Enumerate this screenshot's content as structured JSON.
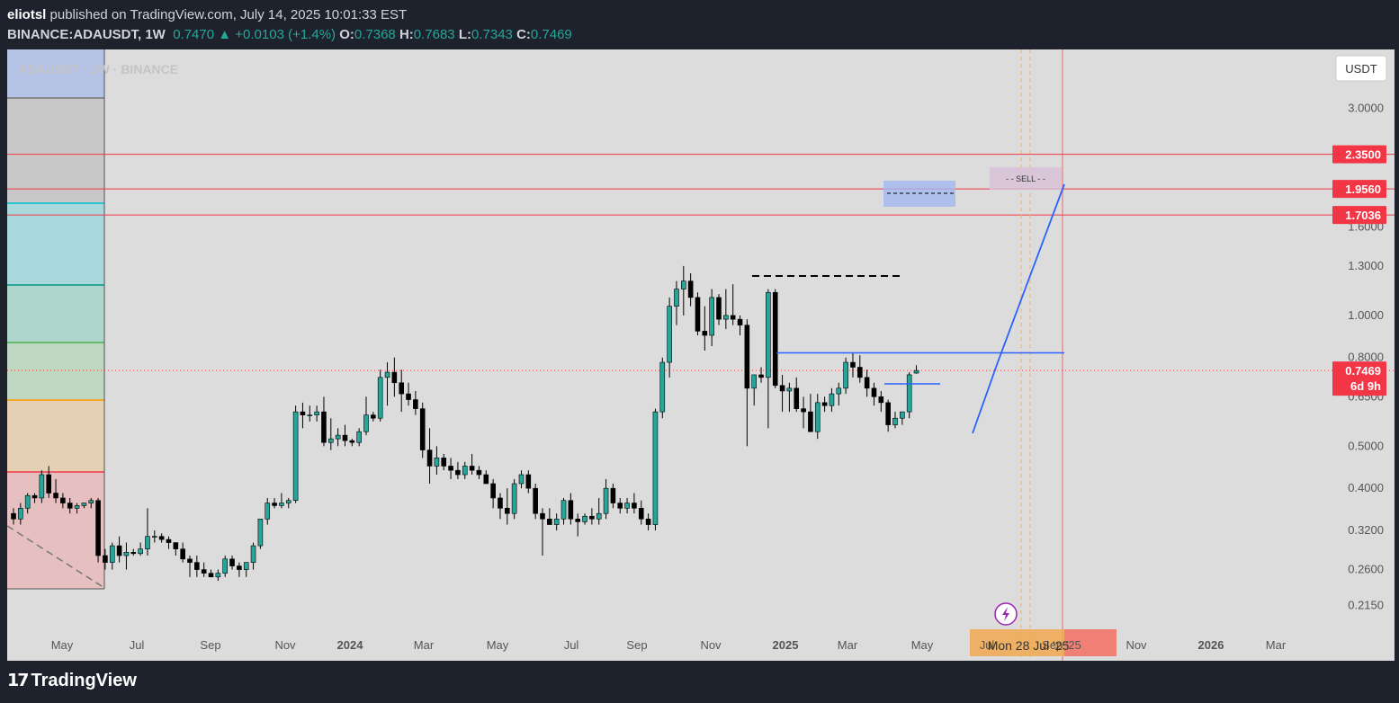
{
  "header": {
    "publisher": "eliotsl",
    "published_text": "published on TradingView.com, July 14, 2025 10:01:33 EST",
    "symbol": "BINANCE:ADAUSDT, 1W",
    "last": "0.7470",
    "change": "+0.0103 (+1.4%)",
    "o_label": "O:",
    "o": "0.7368",
    "h_label": "H:",
    "h": "0.7683",
    "l_label": "L:",
    "l": "0.7343",
    "c_label": "C:",
    "c": "0.7469"
  },
  "watermark": "ADAUSDT · 1W · BINANCE",
  "currency_button": "USDT",
  "footer": {
    "brand": "TradingView"
  },
  "colors": {
    "up": "#26a69a",
    "down": "#000000",
    "level_red": "#f23645",
    "trend_blue": "#2962ff"
  },
  "chart_data": {
    "type": "candlestick",
    "y_scale": "log",
    "ylim": [
      0.185,
      4.0
    ],
    "y_ticks": [
      "3.0000",
      "1.6000",
      "1.3000",
      "1.0000",
      "0.8000",
      "0.6500",
      "0.5000",
      "0.4000",
      "0.3200",
      "0.2600",
      "0.2150"
    ],
    "x_ticks": [
      "May",
      "Jul",
      "Sep",
      "Nov",
      "2024",
      "Mar",
      "May",
      "Jul",
      "Sep",
      "Nov",
      "2025",
      "Mar",
      "May",
      "Jul",
      "Sep '25",
      "Nov",
      "2026",
      "Mar"
    ],
    "price_labels": [
      {
        "text": "2.3500",
        "value": 2.35
      },
      {
        "text": "1.9560",
        "value": 1.956
      },
      {
        "text": "1.7036",
        "value": 1.7036
      },
      {
        "text": "0.7469",
        "value": 0.7469,
        "sub": "6d 9h"
      }
    ],
    "horizontal_levels": [
      2.35,
      1.956,
      1.7036
    ],
    "current_price": 0.7469,
    "annotations": {
      "sell": "SELL",
      "date_marker": "Mon 28 Jul '25"
    },
    "candles": [
      [
        0.35,
        0.36,
        0.33,
        0.34
      ],
      [
        0.34,
        0.37,
        0.33,
        0.36
      ],
      [
        0.36,
        0.39,
        0.35,
        0.385
      ],
      [
        0.385,
        0.39,
        0.37,
        0.38
      ],
      [
        0.38,
        0.44,
        0.37,
        0.43
      ],
      [
        0.43,
        0.45,
        0.38,
        0.39
      ],
      [
        0.39,
        0.42,
        0.37,
        0.38
      ],
      [
        0.38,
        0.39,
        0.36,
        0.37
      ],
      [
        0.37,
        0.38,
        0.35,
        0.36
      ],
      [
        0.36,
        0.37,
        0.35,
        0.365
      ],
      [
        0.365,
        0.37,
        0.36,
        0.37
      ],
      [
        0.37,
        0.38,
        0.36,
        0.375
      ],
      [
        0.375,
        0.38,
        0.27,
        0.28
      ],
      [
        0.28,
        0.29,
        0.26,
        0.27
      ],
      [
        0.27,
        0.3,
        0.26,
        0.295
      ],
      [
        0.295,
        0.31,
        0.27,
        0.28
      ],
      [
        0.28,
        0.3,
        0.26,
        0.285
      ],
      [
        0.285,
        0.29,
        0.28,
        0.283
      ],
      [
        0.283,
        0.3,
        0.28,
        0.29
      ],
      [
        0.29,
        0.36,
        0.28,
        0.31
      ],
      [
        0.31,
        0.32,
        0.3,
        0.31
      ],
      [
        0.31,
        0.315,
        0.3,
        0.305
      ],
      [
        0.305,
        0.31,
        0.29,
        0.3
      ],
      [
        0.3,
        0.3,
        0.28,
        0.29
      ],
      [
        0.29,
        0.3,
        0.27,
        0.275
      ],
      [
        0.275,
        0.28,
        0.25,
        0.27
      ],
      [
        0.27,
        0.28,
        0.25,
        0.26
      ],
      [
        0.26,
        0.27,
        0.25,
        0.255
      ],
      [
        0.255,
        0.26,
        0.25,
        0.25
      ],
      [
        0.25,
        0.26,
        0.245,
        0.255
      ],
      [
        0.255,
        0.28,
        0.25,
        0.275
      ],
      [
        0.275,
        0.28,
        0.26,
        0.265
      ],
      [
        0.265,
        0.27,
        0.25,
        0.26
      ],
      [
        0.26,
        0.27,
        0.25,
        0.27
      ],
      [
        0.27,
        0.3,
        0.26,
        0.295
      ],
      [
        0.295,
        0.34,
        0.29,
        0.34
      ],
      [
        0.34,
        0.38,
        0.33,
        0.37
      ],
      [
        0.37,
        0.38,
        0.36,
        0.365
      ],
      [
        0.365,
        0.39,
        0.36,
        0.37
      ],
      [
        0.37,
        0.38,
        0.36,
        0.375
      ],
      [
        0.375,
        0.62,
        0.37,
        0.6
      ],
      [
        0.6,
        0.63,
        0.55,
        0.59
      ],
      [
        0.59,
        0.62,
        0.57,
        0.59
      ],
      [
        0.59,
        0.62,
        0.57,
        0.6
      ],
      [
        0.6,
        0.65,
        0.5,
        0.51
      ],
      [
        0.51,
        0.58,
        0.49,
        0.52
      ],
      [
        0.52,
        0.55,
        0.5,
        0.53
      ],
      [
        0.53,
        0.56,
        0.5,
        0.515
      ],
      [
        0.515,
        0.52,
        0.5,
        0.51
      ],
      [
        0.51,
        0.55,
        0.5,
        0.54
      ],
      [
        0.54,
        0.65,
        0.53,
        0.59
      ],
      [
        0.59,
        0.6,
        0.57,
        0.58
      ],
      [
        0.58,
        0.75,
        0.57,
        0.72
      ],
      [
        0.72,
        0.78,
        0.62,
        0.74
      ],
      [
        0.74,
        0.8,
        0.65,
        0.7
      ],
      [
        0.7,
        0.75,
        0.6,
        0.66
      ],
      [
        0.66,
        0.7,
        0.62,
        0.64
      ],
      [
        0.64,
        0.67,
        0.59,
        0.61
      ],
      [
        0.61,
        0.63,
        0.47,
        0.49
      ],
      [
        0.49,
        0.55,
        0.41,
        0.45
      ],
      [
        0.45,
        0.5,
        0.43,
        0.47
      ],
      [
        0.47,
        0.48,
        0.44,
        0.45
      ],
      [
        0.45,
        0.47,
        0.42,
        0.44
      ],
      [
        0.44,
        0.46,
        0.42,
        0.43
      ],
      [
        0.43,
        0.46,
        0.42,
        0.45
      ],
      [
        0.45,
        0.48,
        0.43,
        0.44
      ],
      [
        0.44,
        0.45,
        0.42,
        0.43
      ],
      [
        0.43,
        0.44,
        0.41,
        0.41
      ],
      [
        0.41,
        0.42,
        0.36,
        0.38
      ],
      [
        0.38,
        0.39,
        0.34,
        0.36
      ],
      [
        0.36,
        0.4,
        0.33,
        0.35
      ],
      [
        0.35,
        0.42,
        0.34,
        0.41
      ],
      [
        0.41,
        0.44,
        0.4,
        0.43
      ],
      [
        0.43,
        0.44,
        0.39,
        0.4
      ],
      [
        0.4,
        0.41,
        0.34,
        0.35
      ],
      [
        0.35,
        0.36,
        0.28,
        0.34
      ],
      [
        0.34,
        0.36,
        0.33,
        0.33
      ],
      [
        0.33,
        0.35,
        0.32,
        0.34
      ],
      [
        0.34,
        0.38,
        0.33,
        0.375
      ],
      [
        0.375,
        0.39,
        0.33,
        0.34
      ],
      [
        0.34,
        0.35,
        0.31,
        0.335
      ],
      [
        0.335,
        0.35,
        0.33,
        0.345
      ],
      [
        0.345,
        0.36,
        0.33,
        0.34
      ],
      [
        0.34,
        0.38,
        0.33,
        0.35
      ],
      [
        0.35,
        0.42,
        0.34,
        0.4
      ],
      [
        0.4,
        0.41,
        0.36,
        0.37
      ],
      [
        0.37,
        0.38,
        0.35,
        0.36
      ],
      [
        0.36,
        0.38,
        0.35,
        0.37
      ],
      [
        0.37,
        0.39,
        0.35,
        0.36
      ],
      [
        0.36,
        0.375,
        0.33,
        0.34
      ],
      [
        0.34,
        0.35,
        0.32,
        0.33
      ],
      [
        0.33,
        0.61,
        0.32,
        0.6
      ],
      [
        0.6,
        0.8,
        0.58,
        0.78
      ],
      [
        0.78,
        1.1,
        0.72,
        1.05
      ],
      [
        1.05,
        1.2,
        0.95,
        1.15
      ],
      [
        1.15,
        1.3,
        1.0,
        1.2
      ],
      [
        1.2,
        1.25,
        1.05,
        1.1
      ],
      [
        1.1,
        1.13,
        0.9,
        0.92
      ],
      [
        0.92,
        1.05,
        0.83,
        0.9
      ],
      [
        0.9,
        1.15,
        0.85,
        1.1
      ],
      [
        1.1,
        1.12,
        0.95,
        0.98
      ],
      [
        0.98,
        1.15,
        0.93,
        1.0
      ],
      [
        1.0,
        1.18,
        0.95,
        0.98
      ],
      [
        0.98,
        1.0,
        0.9,
        0.95
      ],
      [
        0.95,
        0.98,
        0.5,
        0.68
      ],
      [
        0.68,
        0.72,
        0.62,
        0.73
      ],
      [
        0.73,
        0.76,
        0.7,
        0.72
      ],
      [
        0.72,
        1.15,
        0.55,
        1.13
      ],
      [
        1.13,
        1.15,
        0.68,
        0.69
      ],
      [
        0.69,
        0.73,
        0.6,
        0.67
      ],
      [
        0.67,
        0.7,
        0.6,
        0.68
      ],
      [
        0.68,
        0.72,
        0.6,
        0.61
      ],
      [
        0.61,
        0.65,
        0.55,
        0.6
      ],
      [
        0.6,
        0.66,
        0.55,
        0.54
      ],
      [
        0.54,
        0.66,
        0.52,
        0.63
      ],
      [
        0.63,
        0.65,
        0.6,
        0.62
      ],
      [
        0.62,
        0.68,
        0.6,
        0.66
      ],
      [
        0.66,
        0.7,
        0.62,
        0.68
      ],
      [
        0.68,
        0.8,
        0.66,
        0.78
      ],
      [
        0.78,
        0.82,
        0.72,
        0.76
      ],
      [
        0.76,
        0.81,
        0.7,
        0.72
      ],
      [
        0.72,
        0.75,
        0.65,
        0.68
      ],
      [
        0.68,
        0.7,
        0.62,
        0.65
      ],
      [
        0.65,
        0.67,
        0.6,
        0.63
      ],
      [
        0.63,
        0.64,
        0.54,
        0.56
      ],
      [
        0.56,
        0.6,
        0.55,
        0.58
      ],
      [
        0.58,
        0.6,
        0.56,
        0.6
      ],
      [
        0.6,
        0.74,
        0.58,
        0.73
      ],
      [
        0.7368,
        0.7683,
        0.7343,
        0.7469
      ]
    ]
  }
}
